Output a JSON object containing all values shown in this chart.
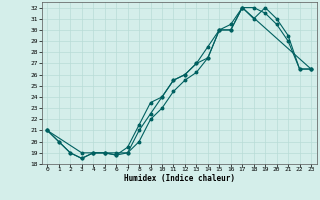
{
  "title": "",
  "xlabel": "Humidex (Indice chaleur)",
  "xlim": [
    -0.5,
    23.5
  ],
  "ylim": [
    18,
    32.5
  ],
  "xticks": [
    0,
    1,
    2,
    3,
    4,
    5,
    6,
    7,
    8,
    9,
    10,
    11,
    12,
    13,
    14,
    15,
    16,
    17,
    18,
    19,
    20,
    21,
    22,
    23
  ],
  "yticks": [
    18,
    19,
    20,
    21,
    22,
    23,
    24,
    25,
    26,
    27,
    28,
    29,
    30,
    31,
    32
  ],
  "plot_bg": "#d4eeea",
  "bottom_bg": "#b0ccc8",
  "line_color": "#006060",
  "grid_color": "#b8dcd6",
  "line1_x": [
    0,
    1,
    2,
    3,
    4,
    5,
    6,
    7,
    8,
    9,
    10,
    11,
    12,
    13,
    14,
    15,
    16,
    17,
    18,
    19,
    20,
    21,
    22,
    23
  ],
  "line1_y": [
    21,
    20,
    19,
    18.5,
    19,
    19,
    18.8,
    19,
    20,
    22,
    23,
    24.5,
    25.5,
    26.2,
    27.5,
    30,
    30,
    32,
    32,
    31.5,
    30.5,
    29,
    26.5,
    26.5
  ],
  "line2_x": [
    0,
    1,
    2,
    3,
    4,
    5,
    6,
    7,
    8,
    9,
    10,
    11,
    12,
    13,
    14,
    15,
    16,
    17,
    18,
    19,
    20,
    21,
    22,
    23
  ],
  "line2_y": [
    21,
    20,
    19,
    18.5,
    19,
    19,
    18.8,
    19.5,
    21.5,
    23.5,
    24,
    25.5,
    26,
    27,
    27.5,
    30,
    30,
    32,
    31,
    32,
    31,
    29.5,
    26.5,
    26.5
  ],
  "line3_x": [
    0,
    3,
    4,
    5,
    6,
    7,
    8,
    9,
    10,
    11,
    12,
    13,
    14,
    15,
    16,
    17,
    23
  ],
  "line3_y": [
    21,
    19,
    19,
    19,
    19,
    19,
    21,
    22.5,
    24,
    25.5,
    26,
    27,
    28.5,
    30,
    30.5,
    32,
    26.5
  ]
}
